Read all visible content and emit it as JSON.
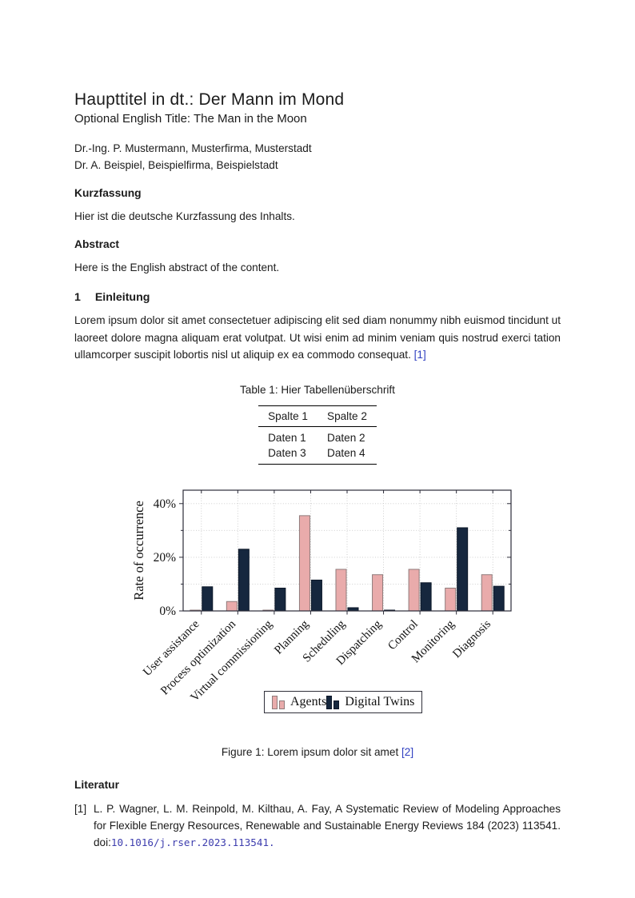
{
  "doc": {
    "title": "Haupttitel in dt.: Der Mann im Mond",
    "subtitle": "Optional English Title: The Man in the Moon",
    "authors": [
      "Dr.-Ing. P. Mustermann, Musterfirma, Musterstadt",
      "Dr. A. Beispiel, Beispielfirma, Beispielstadt"
    ],
    "kurzfassung_heading": "Kurzfassung",
    "kurzfassung_text": "Hier ist die deutsche Kurzfassung des Inhalts.",
    "abstract_heading": "Abstract",
    "abstract_text": "Here is the English abstract of the content.",
    "section_number": "1",
    "section_title": "Einleitung",
    "intro_text": "Lorem ipsum dolor sit amet consectetuer adipiscing elit sed diam nonummy nibh euismod tin­cidunt ut laoreet dolore magna aliquam erat volutpat. Ut wisi enim ad minim veniam quis nostrud exerci tation ullamcorper suscipit lobortis nisl ut aliquip ex ea commodo consequat.",
    "intro_citation": "[1]"
  },
  "table": {
    "caption": "Table 1: Hier Tabellenüberschrift",
    "headers": [
      "Spalte 1",
      "Spalte 2"
    ],
    "rows": [
      [
        "Daten 1",
        "Daten 2"
      ],
      [
        "Daten 3",
        "Daten 4"
      ]
    ]
  },
  "figure": {
    "caption_text": "Figure 1: Lorem ipsum dolor sit amet",
    "caption_citation": "[2]"
  },
  "chart_data": {
    "type": "bar",
    "title": "",
    "xlabel": "",
    "ylabel": "Rate of occurrence",
    "categories": [
      "User assistance",
      "Process optimization",
      "Virtual commissioning",
      "Planning",
      "Scheduling",
      "Dispatching",
      "Control",
      "Monitoring",
      "Diagnosis"
    ],
    "series": [
      {
        "name": "Agents",
        "color": "#e9abab",
        "border": "#8f7b7b",
        "values": [
          0.2,
          3.5,
          0.3,
          35.5,
          15.5,
          13.5,
          15.5,
          8.5,
          13.5
        ]
      },
      {
        "name": "Digital Twins",
        "color": "#16273e",
        "border": "#0c1728",
        "values": [
          9,
          23,
          8.5,
          11.5,
          1.2,
          0.3,
          10.5,
          31,
          9.2
        ]
      }
    ],
    "ylim": [
      0,
      45
    ],
    "yticks_major": [
      0,
      20,
      40
    ],
    "yticks_minor": [
      10,
      30
    ],
    "ytick_labels": [
      "0%",
      "20%",
      "40%"
    ],
    "grid": "dotted",
    "legend_position": "below"
  },
  "literatur": {
    "heading": "Literatur",
    "entries": [
      {
        "label": "[1]",
        "text": "L. P. Wagner, L. M. Reinpold, M. Kilthau, A. Fay,  A Systematic Review of Modeling Ap­proaches for Flexible Energy Resources, Renewable and Sustainable Energy Reviews 184 (2023) 113541. doi:",
        "doi": "10.1016/j.rser.2023.113541."
      }
    ]
  },
  "colors": {
    "citation_link": "#2f3fc0",
    "doi_link": "#3d3dae",
    "agents_fill": "#e9abab",
    "twins_fill": "#16273e",
    "axis_frame": "#2b2b38",
    "grid": "#c9c9c9"
  }
}
